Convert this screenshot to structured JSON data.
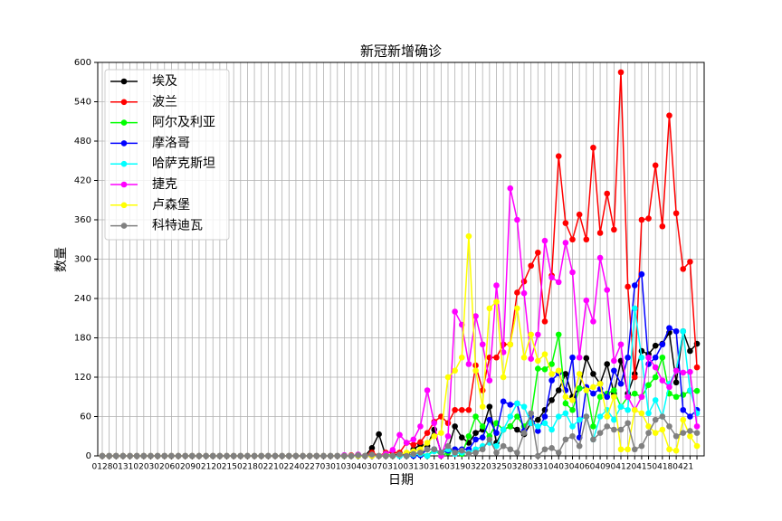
{
  "chart_data": {
    "type": "line",
    "title": "新冠新增确诊",
    "x_label": "日期",
    "y_label": "数量",
    "categories": [
      "0128",
      null,
      null,
      "0131",
      null,
      null,
      "0203",
      null,
      null,
      "0206",
      null,
      null,
      "0209",
      null,
      null,
      "0212",
      null,
      null,
      "0215",
      null,
      null,
      "0218",
      null,
      null,
      "0221",
      null,
      null,
      "0224",
      null,
      null,
      "0227",
      null,
      null,
      "0301",
      null,
      null,
      "0304",
      null,
      null,
      "0307",
      null,
      null,
      "0310",
      null,
      null,
      "0313",
      null,
      null,
      "0316",
      null,
      null,
      "0319",
      null,
      null,
      "0322",
      null,
      null,
      "0325",
      null,
      null,
      "0328",
      null,
      null,
      "0331",
      null,
      null,
      "0403",
      null,
      null,
      "0406",
      null,
      null,
      "0409",
      null,
      null,
      "0412",
      null,
      null,
      "0415",
      null,
      null,
      "0418",
      null,
      null,
      "0421",
      null,
      null
    ],
    "ylim": [
      0,
      600
    ],
    "yticks": [
      0,
      60,
      120,
      180,
      240,
      300,
      360,
      420,
      480,
      540,
      600
    ],
    "grid": true,
    "legend": "upper-left",
    "series": [
      {
        "name": "埃及",
        "color": "#000000",
        "values": [
          0,
          0,
          0,
          0,
          0,
          0,
          0,
          0,
          0,
          0,
          0,
          0,
          0,
          0,
          0,
          0,
          0,
          0,
          0,
          0,
          0,
          0,
          0,
          0,
          0,
          0,
          0,
          0,
          0,
          0,
          0,
          0,
          0,
          0,
          0,
          0,
          0,
          1,
          0,
          12,
          33,
          0,
          0,
          4,
          0,
          10,
          17,
          15,
          40,
          5,
          10,
          45,
          28,
          20,
          35,
          40,
          75,
          20,
          40,
          45,
          40,
          33,
          50,
          55,
          70,
          85,
          100,
          125,
          90,
          103,
          149,
          125,
          110,
          140,
          95,
          145,
          95,
          125,
          160,
          155,
          168,
          171,
          188,
          112,
          190,
          160,
          171
        ]
      },
      {
        "name": "波兰",
        "color": "#ff0000",
        "values": [
          0,
          0,
          0,
          0,
          0,
          0,
          0,
          0,
          0,
          0,
          0,
          0,
          0,
          0,
          0,
          0,
          0,
          0,
          0,
          0,
          0,
          0,
          0,
          0,
          0,
          0,
          0,
          0,
          0,
          0,
          0,
          0,
          0,
          0,
          0,
          0,
          1,
          0,
          0,
          5,
          0,
          5,
          5,
          5,
          20,
          17,
          21,
          35,
          52,
          60,
          50,
          70,
          70,
          70,
          138,
          100,
          150,
          150,
          170,
          170,
          249,
          266,
          290,
          310,
          205,
          275,
          457,
          355,
          330,
          368,
          330,
          470,
          340,
          400,
          345,
          585,
          258,
          120,
          360,
          362,
          443,
          350,
          519,
          370,
          285,
          296,
          135
        ]
      },
      {
        "name": "阿尔及利亚",
        "color": "#00ff00",
        "values": [
          0,
          0,
          0,
          0,
          0,
          0,
          0,
          0,
          0,
          0,
          0,
          0,
          0,
          0,
          0,
          0,
          0,
          0,
          0,
          0,
          0,
          0,
          0,
          0,
          0,
          0,
          0,
          0,
          0,
          0,
          0,
          0,
          0,
          0,
          0,
          0,
          0,
          2,
          0,
          0,
          0,
          3,
          0,
          0,
          2,
          1,
          5,
          0,
          10,
          0,
          5,
          10,
          3,
          30,
          60,
          45,
          30,
          50,
          40,
          45,
          60,
          45,
          60,
          133,
          132,
          140,
          185,
          80,
          70,
          103,
          104,
          45,
          90,
          95,
          100,
          75,
          90,
          95,
          90,
          108,
          120,
          150,
          95,
          90,
          93,
          99,
          99
        ]
      },
      {
        "name": "摩洛哥",
        "color": "#0000ff",
        "values": [
          0,
          0,
          0,
          0,
          0,
          0,
          0,
          0,
          0,
          0,
          0,
          0,
          0,
          0,
          0,
          0,
          0,
          0,
          0,
          0,
          0,
          0,
          0,
          0,
          0,
          0,
          0,
          0,
          0,
          0,
          0,
          0,
          0,
          0,
          0,
          1,
          0,
          0,
          0,
          0,
          0,
          0,
          0,
          0,
          2,
          0,
          1,
          10,
          10,
          5,
          8,
          10,
          10,
          10,
          25,
          28,
          55,
          35,
          83,
          78,
          80,
          38,
          60,
          38,
          60,
          115,
          126,
          100,
          150,
          28,
          105,
          95,
          102,
          90,
          130,
          110,
          150,
          260,
          277,
          140,
          150,
          170,
          195,
          190,
          70,
          60,
          70
        ]
      },
      {
        "name": "哈萨克斯坦",
        "color": "#00ffff",
        "values": [
          0,
          0,
          0,
          0,
          0,
          0,
          0,
          0,
          0,
          0,
          0,
          0,
          0,
          0,
          0,
          0,
          0,
          0,
          0,
          0,
          0,
          0,
          0,
          0,
          0,
          0,
          0,
          0,
          0,
          0,
          0,
          0,
          0,
          0,
          0,
          0,
          0,
          0,
          0,
          0,
          0,
          0,
          0,
          0,
          0,
          2,
          3,
          0,
          7,
          5,
          10,
          3,
          5,
          5,
          10,
          15,
          20,
          15,
          40,
          60,
          80,
          75,
          50,
          45,
          50,
          40,
          60,
          65,
          45,
          55,
          60,
          25,
          60,
          70,
          55,
          75,
          70,
          225,
          150,
          65,
          85,
          60,
          110,
          130,
          190,
          100,
          65
        ]
      },
      {
        "name": "捷克",
        "color": "#ff00ff",
        "values": [
          0,
          0,
          0,
          0,
          0,
          0,
          0,
          0,
          0,
          0,
          0,
          0,
          0,
          0,
          0,
          0,
          0,
          0,
          0,
          0,
          0,
          0,
          0,
          0,
          0,
          0,
          0,
          0,
          0,
          0,
          0,
          0,
          0,
          0,
          0,
          1,
          0,
          2,
          0,
          0,
          0,
          3,
          9,
          32,
          20,
          25,
          45,
          100,
          50,
          0,
          30,
          220,
          200,
          140,
          213,
          170,
          115,
          260,
          158,
          408,
          360,
          248,
          148,
          185,
          328,
          272,
          265,
          325,
          280,
          150,
          237,
          205,
          302,
          253,
          145,
          170,
          90,
          70,
          90,
          150,
          135,
          115,
          105,
          130,
          127,
          128,
          45
        ]
      },
      {
        "name": "卢森堡",
        "color": "#ffff00",
        "values": [
          0,
          0,
          0,
          0,
          0,
          0,
          0,
          0,
          0,
          0,
          0,
          0,
          0,
          0,
          0,
          0,
          0,
          0,
          0,
          0,
          0,
          0,
          0,
          0,
          0,
          0,
          0,
          0,
          0,
          0,
          0,
          0,
          0,
          0,
          0,
          0,
          0,
          0,
          0,
          0,
          0,
          0,
          0,
          2,
          5,
          7,
          10,
          20,
          30,
          35,
          120,
          130,
          150,
          335,
          130,
          75,
          225,
          235,
          120,
          170,
          225,
          150,
          185,
          145,
          155,
          125,
          130,
          90,
          85,
          125,
          100,
          105,
          110,
          60,
          90,
          10,
          10,
          70,
          65,
          45,
          35,
          40,
          10,
          8,
          55,
          30,
          15
        ]
      },
      {
        "name": "科特迪瓦",
        "color": "#808080",
        "values": [
          0,
          0,
          0,
          0,
          0,
          0,
          0,
          0,
          0,
          0,
          0,
          0,
          0,
          0,
          0,
          0,
          0,
          0,
          0,
          0,
          0,
          0,
          0,
          0,
          0,
          0,
          0,
          0,
          0,
          0,
          0,
          0,
          0,
          0,
          0,
          0,
          0,
          1,
          0,
          2,
          0,
          0,
          0,
          2,
          0,
          3,
          5,
          10,
          10,
          5,
          15,
          5,
          8,
          3,
          5,
          10,
          25,
          5,
          15,
          10,
          5,
          35,
          65,
          0,
          10,
          12,
          5,
          25,
          30,
          15,
          60,
          25,
          35,
          45,
          40,
          40,
          50,
          10,
          15,
          35,
          55,
          60,
          45,
          30,
          35,
          38,
          35
        ]
      }
    ]
  }
}
